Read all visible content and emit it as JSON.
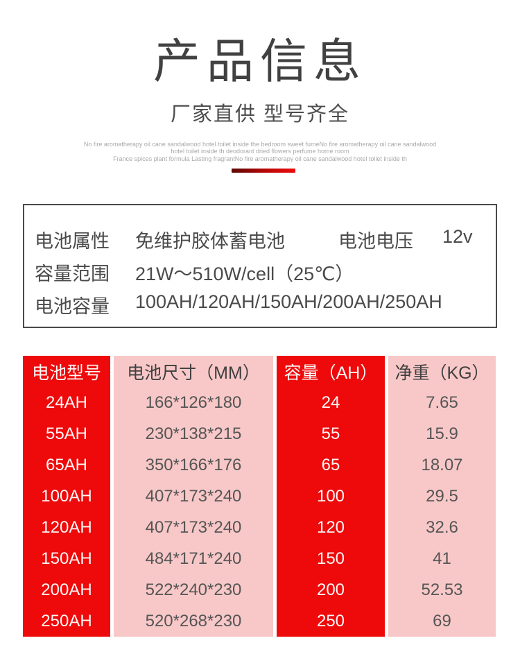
{
  "header": {
    "title": "产品信息",
    "subtitle": "厂家直供 型号齐全",
    "description_lines": [
      "No fire aromatherapy oil cane sandalwood hotel toilet inside the bedroom sweet fumeNo fire aromatherapy oil cane sandalwood",
      "hotel toilet inside th deodorant dried flowers perfume home room",
      "France spices plant formula Lasting fragrantNo fire aromatherapy oil cane sandalwood hotel toilet inside th"
    ]
  },
  "info_box": {
    "row1": {
      "label": "电池属性",
      "value": "免维护胶体蓄电池",
      "label2": "电池电压",
      "value2": "12v"
    },
    "row2": {
      "label": "容量范围",
      "value": "21W～510W/cell（25℃）"
    },
    "row3": {
      "label": "电池容量",
      "value": "100AH/120AH/150AH/200AH/250AH"
    }
  },
  "spec_table": {
    "headers": [
      "电池型号",
      "电池尺寸（MM）",
      "容量（AH）",
      "净重（KG）"
    ],
    "rows": [
      {
        "model": "24AH",
        "size": "166*126*180",
        "capacity": "24",
        "weight": "7.65"
      },
      {
        "model": "55AH",
        "size": "230*138*215",
        "capacity": "55",
        "weight": "15.9"
      },
      {
        "model": "65AH",
        "size": "350*166*176",
        "capacity": "65",
        "weight": "18.07"
      },
      {
        "model": "100AH",
        "size": "407*173*240",
        "capacity": "100",
        "weight": "29.5"
      },
      {
        "model": "120AH",
        "size": "407*173*240",
        "capacity": "120",
        "weight": "32.6"
      },
      {
        "model": "150AH",
        "size": "484*171*240",
        "capacity": "150",
        "weight": "41"
      },
      {
        "model": "200AH",
        "size": "522*240*230",
        "capacity": "200",
        "weight": "52.53"
      },
      {
        "model": "250AH",
        "size": "520*268*230",
        "capacity": "250",
        "weight": "69"
      }
    ]
  },
  "colors": {
    "accent_red": "#ee0a0a",
    "accent_pink": "#f8c8c8",
    "divider_dark": "#5d0707",
    "divider_bright": "#ee0b0b"
  }
}
